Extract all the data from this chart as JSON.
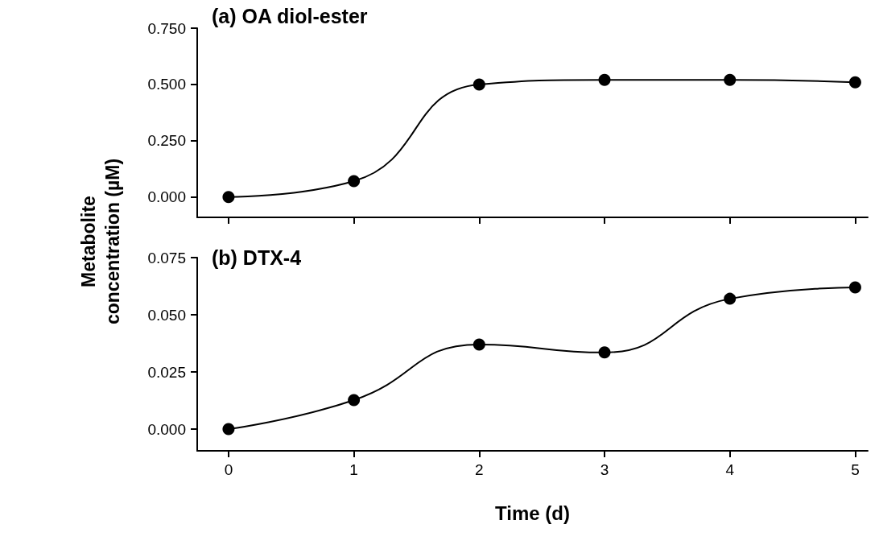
{
  "chart_data": [
    {
      "type": "line",
      "title": "(a) OA diol-ester",
      "ylabel": "Metabolite concentration (µM)",
      "x": [
        0,
        1,
        2,
        3,
        4,
        5
      ],
      "series": [
        {
          "color": "#000000",
          "values": [
            0.0,
            0.071,
            0.5,
            0.52,
            0.52,
            0.51
          ]
        }
      ],
      "xlim": [
        -0.25,
        5.1
      ],
      "xticks": [
        0,
        1,
        2,
        3,
        4,
        5
      ],
      "ylim": [
        -0.09,
        0.75
      ],
      "yticks": [
        {
          "value": 0,
          "label": "0.000"
        },
        {
          "value": 0.25,
          "label": "0.250"
        },
        {
          "value": 0.5,
          "label": "0.500"
        },
        {
          "value": 0.75,
          "label": "0.750"
        }
      ],
      "tick_labels": "y",
      "grid": false,
      "marker": "circle",
      "line_style": "solid"
    },
    {
      "type": "line",
      "title": "(b) DTX-4",
      "xlabel": "Time (d)",
      "x": [
        0,
        1,
        2,
        3,
        4,
        5
      ],
      "series": [
        {
          "color": "#000000",
          "values": [
            0.0,
            0.0127,
            0.037,
            0.0335,
            0.057,
            0.062
          ]
        }
      ],
      "xlim": [
        -0.25,
        5.1
      ],
      "xticks": [
        0,
        1,
        2,
        3,
        4,
        5
      ],
      "ylim": [
        -0.0095,
        0.075
      ],
      "yticks": [
        {
          "value": 0,
          "label": "0.000"
        },
        {
          "value": 0.025,
          "label": "0.025"
        },
        {
          "value": 0.05,
          "label": "0.050"
        },
        {
          "value": 0.075,
          "label": "0.075"
        }
      ],
      "grid": false,
      "marker": "circle",
      "line_style": "solid"
    }
  ]
}
